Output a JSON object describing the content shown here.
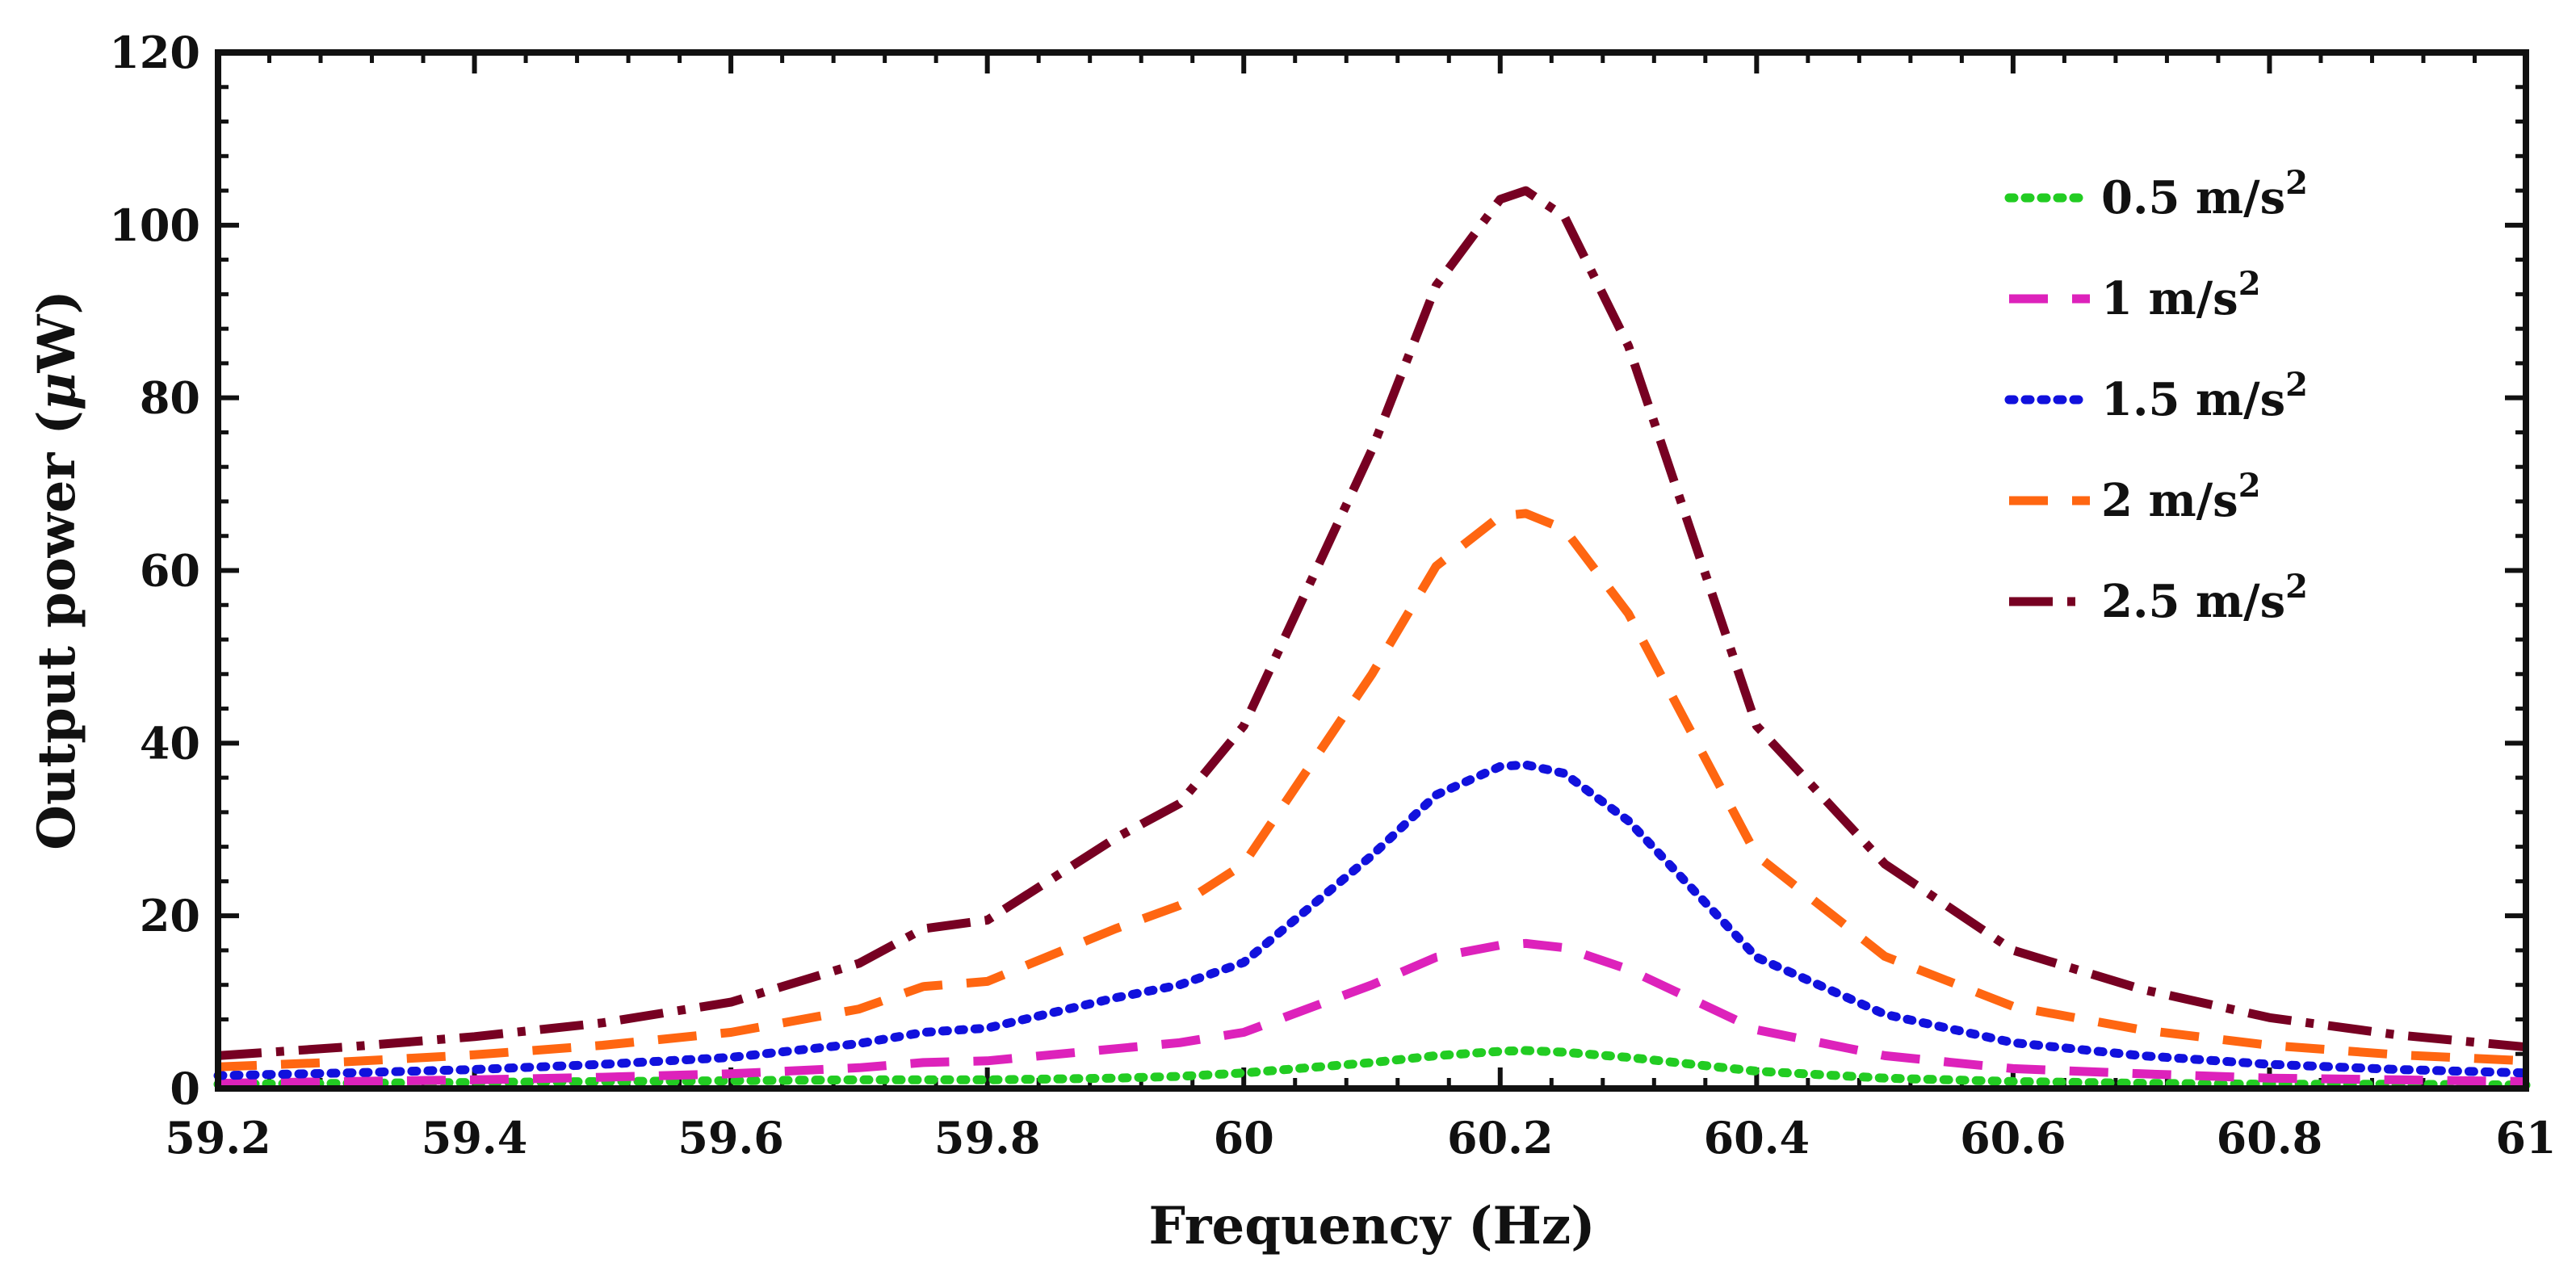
{
  "chart_data": {
    "type": "line",
    "title": "",
    "xlabel": "Frequency (Hz)",
    "ylabel_parts": [
      "Output power (",
      "μ",
      "W)"
    ],
    "xlim": [
      59.2,
      61
    ],
    "ylim": [
      0,
      120
    ],
    "xticks": [
      59.2,
      59.4,
      59.6,
      59.8,
      60,
      60.2,
      60.4,
      60.6,
      60.8,
      61
    ],
    "xtick_labels": [
      "59.2",
      "59.4",
      "59.6",
      "59.8",
      "60",
      "60.2",
      "60.4",
      "60.6",
      "60.8",
      "61"
    ],
    "yticks": [
      0,
      20,
      40,
      60,
      80,
      100,
      120
    ],
    "ytick_labels": [
      "0",
      "20",
      "40",
      "60",
      "80",
      "100",
      "120"
    ],
    "grid": false,
    "legend_position": "top-right",
    "series": [
      {
        "name": "0.5 m/s2",
        "label_text": "0.5 m/s",
        "label_sup": "2",
        "color": "#22cc22",
        "style": "dotted",
        "x": [
          59.2,
          59.3,
          59.4,
          59.5,
          59.6,
          59.7,
          59.75,
          59.8,
          59.9,
          59.95,
          60.0,
          60.1,
          60.15,
          60.2,
          60.22,
          60.25,
          60.3,
          60.4,
          60.5,
          60.6,
          60.7,
          60.8,
          60.9,
          61.0
        ],
        "values": [
          0.5,
          0.6,
          0.7,
          0.8,
          0.9,
          1.0,
          1.0,
          1.0,
          1.2,
          1.4,
          1.8,
          3.0,
          3.8,
          4.3,
          4.4,
          4.2,
          3.6,
          2.0,
          1.2,
          0.8,
          0.6,
          0.5,
          0.5,
          0.4
        ]
      },
      {
        "name": "1 m/s2",
        "label_text": "1 m/s",
        "label_sup": "2",
        "color": "#dd22bb",
        "style": "dashed",
        "x": [
          59.2,
          59.3,
          59.4,
          59.5,
          59.6,
          59.7,
          59.75,
          59.8,
          59.9,
          59.95,
          60.0,
          60.1,
          60.15,
          60.2,
          60.22,
          60.25,
          60.3,
          60.4,
          60.5,
          60.6,
          60.7,
          60.8,
          60.9,
          61.0
        ],
        "values": [
          0.6,
          0.8,
          1.0,
          1.3,
          1.7,
          2.4,
          3.0,
          3.2,
          4.6,
          5.3,
          6.5,
          12.0,
          15.2,
          16.6,
          16.8,
          16.3,
          13.8,
          6.8,
          3.8,
          2.3,
          1.7,
          1.2,
          1.0,
          0.8
        ]
      },
      {
        "name": "1.5 m/s2",
        "label_text": "1.5 m/s",
        "label_sup": "2",
        "color": "#1111dd",
        "style": "dotted",
        "x": [
          59.2,
          59.3,
          59.4,
          59.5,
          59.6,
          59.7,
          59.75,
          59.8,
          59.9,
          59.95,
          60.0,
          60.1,
          60.15,
          60.2,
          60.22,
          60.25,
          60.3,
          60.4,
          60.5,
          60.6,
          60.7,
          60.8,
          60.9,
          61.0
        ],
        "values": [
          1.5,
          1.8,
          2.2,
          2.8,
          3.6,
          5.2,
          6.5,
          7.0,
          10.5,
          12.0,
          14.6,
          27.0,
          34.0,
          37.3,
          37.5,
          36.5,
          31.0,
          15.2,
          8.6,
          5.3,
          3.8,
          2.8,
          2.2,
          1.8
        ]
      },
      {
        "name": "2 m/s2",
        "label_text": "2 m/s",
        "label_sup": "2",
        "color": "#ff6611",
        "style": "dashed",
        "x": [
          59.2,
          59.3,
          59.4,
          59.5,
          59.6,
          59.7,
          59.75,
          59.8,
          59.9,
          59.95,
          60.0,
          60.1,
          60.15,
          60.2,
          60.22,
          60.25,
          60.3,
          60.4,
          60.5,
          60.6,
          60.7,
          60.8,
          60.9,
          61.0
        ],
        "values": [
          2.5,
          3.1,
          3.9,
          5.0,
          6.5,
          9.2,
          11.8,
          12.4,
          18.5,
          21.2,
          26.0,
          48.0,
          60.5,
          66.3,
          66.6,
          64.8,
          55.0,
          27.0,
          15.3,
          9.5,
          6.8,
          5.0,
          3.9,
          3.2
        ]
      },
      {
        "name": "2.5 m/s2",
        "label_text": "2.5 m/s",
        "label_sup": "2",
        "color": "#770022",
        "style": "dashdot",
        "x": [
          59.2,
          59.3,
          59.4,
          59.5,
          59.6,
          59.7,
          59.75,
          59.8,
          59.9,
          59.95,
          60.0,
          60.1,
          60.15,
          60.2,
          60.22,
          60.25,
          60.3,
          60.4,
          60.5,
          60.6,
          60.7,
          60.8,
          60.9,
          61.0
        ],
        "values": [
          3.8,
          4.8,
          6.0,
          7.6,
          10.0,
          14.5,
          18.5,
          19.5,
          29.0,
          33.0,
          42.0,
          74.0,
          93.0,
          103.0,
          104.0,
          101.0,
          86.0,
          42.0,
          26.0,
          16.0,
          11.5,
          8.2,
          6.2,
          4.8
        ]
      }
    ]
  }
}
